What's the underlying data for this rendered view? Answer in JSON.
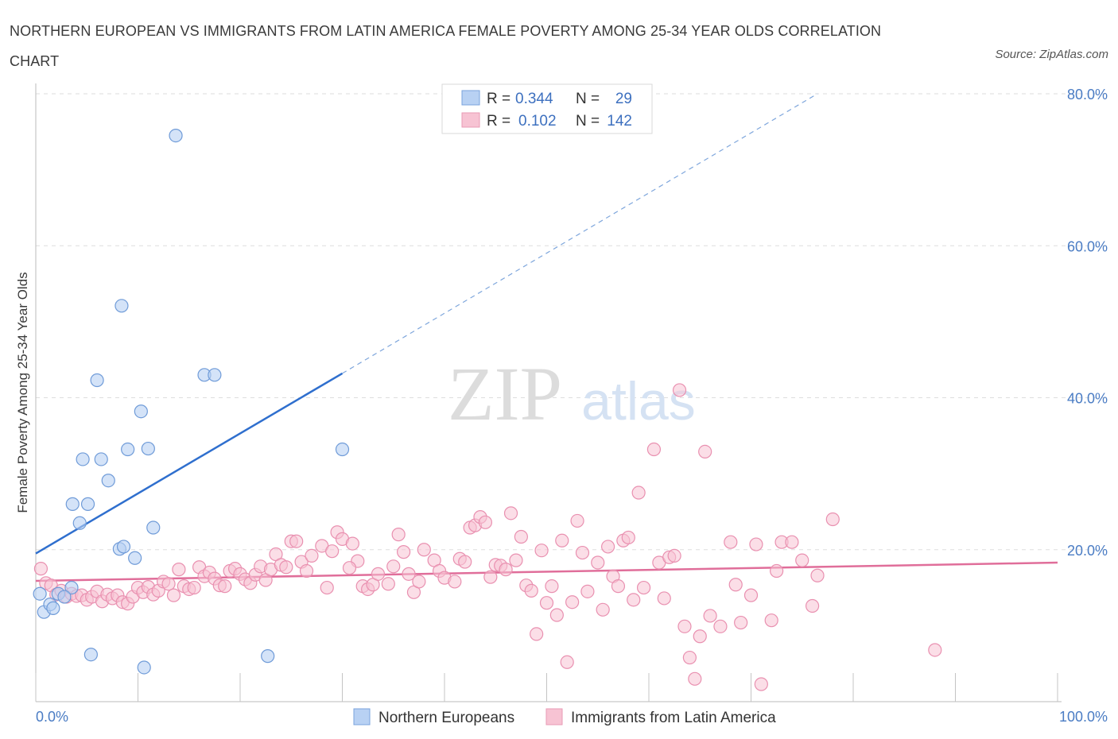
{
  "title": "NORTHERN EUROPEAN VS IMMIGRANTS FROM LATIN AMERICA FEMALE POVERTY AMONG 25-34 YEAR OLDS CORRELATION CHART",
  "source": "Source: ZipAtlas.com",
  "watermark": {
    "zip": "ZIP",
    "atlas": "atlas"
  },
  "colors": {
    "blue": "#4a7cc4",
    "blue_fill": "#b8d1f3",
    "blue_line": "#2f6fce",
    "pink": "#e56a97",
    "pink_fill": "#f7c3d3",
    "pink_line": "#e06e9a"
  },
  "legend": {
    "r_label": "R =",
    "n_label": "N =",
    "items": [
      {
        "r": "0.344",
        "n": "29"
      },
      {
        "r": "0.102",
        "n": "142"
      }
    ]
  },
  "chart_data": {
    "type": "scatter",
    "ylabel": "Female Poverty Among 25-34 Year Olds",
    "xlim": [
      0,
      100
    ],
    "ylim": [
      0,
      80
    ],
    "x_tick_labels": [
      "0.0%",
      "100.0%"
    ],
    "y_ticks": [
      20,
      40,
      60,
      80
    ],
    "y_tick_labels": [
      "20.0%",
      "40.0%",
      "60.0%",
      "80.0%"
    ],
    "grid": true,
    "series": [
      {
        "name": "Northern Europeans",
        "color": "#4a7cc4",
        "trend": {
          "x0": 0,
          "y0": 19.5,
          "x1": 30,
          "y1": 43.2,
          "dashed_to_x": 76.5,
          "dashed_to_y": 80
        },
        "points": [
          [
            0.4,
            14.2
          ],
          [
            0.8,
            11.8
          ],
          [
            1.4,
            12.8
          ],
          [
            1.7,
            12.3
          ],
          [
            3.5,
            15.0
          ],
          [
            2.2,
            14.2
          ],
          [
            13.7,
            74.5
          ],
          [
            8.4,
            52.1
          ],
          [
            6.0,
            42.3
          ],
          [
            16.5,
            43.0
          ],
          [
            17.5,
            43.0
          ],
          [
            10.3,
            38.2
          ],
          [
            9.0,
            33.2
          ],
          [
            11.0,
            33.3
          ],
          [
            4.6,
            31.9
          ],
          [
            6.4,
            31.9
          ],
          [
            7.1,
            29.1
          ],
          [
            3.6,
            26.0
          ],
          [
            5.1,
            26.0
          ],
          [
            4.3,
            23.5
          ],
          [
            11.5,
            22.9
          ],
          [
            8.2,
            20.1
          ],
          [
            8.6,
            20.4
          ],
          [
            9.7,
            18.9
          ],
          [
            30.0,
            33.2
          ],
          [
            5.4,
            6.2
          ],
          [
            10.6,
            4.5
          ],
          [
            22.7,
            6.0
          ],
          [
            2.8,
            13.8
          ]
        ]
      },
      {
        "name": "Immigrants from Latin America",
        "color": "#e56a97",
        "trend": {
          "x0": 0,
          "y0": 15.9,
          "x1": 100,
          "y1": 18.3
        },
        "points": [
          [
            0.5,
            17.5
          ],
          [
            1.0,
            15.6
          ],
          [
            1.5,
            15.3
          ],
          [
            2.0,
            14.1
          ],
          [
            2.5,
            14.6
          ],
          [
            3.0,
            13.8
          ],
          [
            3.5,
            14.2
          ],
          [
            4.0,
            13.9
          ],
          [
            4.5,
            14.0
          ],
          [
            5.0,
            13.4
          ],
          [
            5.5,
            13.8
          ],
          [
            6.0,
            14.5
          ],
          [
            6.5,
            13.2
          ],
          [
            7.0,
            14.1
          ],
          [
            7.5,
            13.6
          ],
          [
            8.0,
            14.0
          ],
          [
            8.5,
            13.1
          ],
          [
            9.0,
            12.9
          ],
          [
            9.5,
            13.8
          ],
          [
            10.0,
            15.0
          ],
          [
            10.5,
            14.4
          ],
          [
            11.0,
            15.1
          ],
          [
            11.5,
            14.1
          ],
          [
            12.0,
            14.6
          ],
          [
            12.5,
            15.8
          ],
          [
            13.0,
            15.5
          ],
          [
            13.5,
            14.0
          ],
          [
            14.0,
            17.4
          ],
          [
            14.5,
            15.2
          ],
          [
            15.0,
            14.8
          ],
          [
            15.5,
            15.0
          ],
          [
            16.0,
            17.7
          ],
          [
            16.5,
            16.5
          ],
          [
            17.0,
            17.0
          ],
          [
            17.5,
            16.2
          ],
          [
            18.0,
            15.3
          ],
          [
            18.5,
            15.2
          ],
          [
            19.0,
            17.2
          ],
          [
            19.5,
            17.5
          ],
          [
            20.0,
            16.8
          ],
          [
            20.5,
            16.1
          ],
          [
            21.0,
            15.6
          ],
          [
            21.5,
            16.7
          ],
          [
            22.0,
            17.8
          ],
          [
            22.5,
            16.0
          ],
          [
            23.0,
            17.4
          ],
          [
            23.5,
            19.4
          ],
          [
            24.0,
            18.0
          ],
          [
            24.5,
            17.7
          ],
          [
            25.0,
            21.1
          ],
          [
            25.5,
            21.1
          ],
          [
            26.0,
            18.4
          ],
          [
            26.5,
            17.2
          ],
          [
            27.0,
            19.2
          ],
          [
            28.0,
            20.5
          ],
          [
            28.5,
            15.0
          ],
          [
            29.0,
            19.8
          ],
          [
            29.5,
            22.3
          ],
          [
            30.0,
            21.4
          ],
          [
            31.0,
            20.8
          ],
          [
            31.5,
            18.5
          ],
          [
            32.0,
            15.2
          ],
          [
            32.5,
            14.8
          ],
          [
            33.0,
            15.4
          ],
          [
            33.5,
            16.8
          ],
          [
            34.5,
            15.5
          ],
          [
            35.0,
            17.8
          ],
          [
            35.5,
            22.0
          ],
          [
            36.0,
            19.7
          ],
          [
            36.5,
            16.8
          ],
          [
            37.0,
            14.4
          ],
          [
            37.5,
            15.8
          ],
          [
            38.0,
            20.0
          ],
          [
            39.0,
            18.6
          ],
          [
            39.5,
            17.2
          ],
          [
            40.0,
            16.3
          ],
          [
            41.0,
            15.8
          ],
          [
            41.5,
            18.8
          ],
          [
            42.0,
            18.4
          ],
          [
            42.5,
            22.9
          ],
          [
            43.0,
            23.2
          ],
          [
            43.5,
            24.3
          ],
          [
            44.0,
            23.6
          ],
          [
            44.5,
            16.4
          ],
          [
            45.0,
            18.0
          ],
          [
            45.5,
            17.9
          ],
          [
            46.0,
            17.4
          ],
          [
            46.5,
            24.8
          ],
          [
            47.0,
            18.6
          ],
          [
            47.5,
            21.7
          ],
          [
            48.0,
            15.3
          ],
          [
            48.5,
            14.6
          ],
          [
            49.0,
            8.9
          ],
          [
            49.5,
            19.9
          ],
          [
            50.0,
            13.0
          ],
          [
            50.5,
            15.2
          ],
          [
            51.0,
            11.4
          ],
          [
            51.5,
            21.2
          ],
          [
            52.5,
            13.1
          ],
          [
            53.0,
            23.8
          ],
          [
            53.5,
            19.6
          ],
          [
            54.0,
            14.5
          ],
          [
            55.0,
            18.3
          ],
          [
            55.5,
            12.1
          ],
          [
            56.0,
            20.4
          ],
          [
            56.5,
            16.5
          ],
          [
            57.0,
            15.2
          ],
          [
            57.5,
            21.2
          ],
          [
            58.0,
            21.6
          ],
          [
            58.5,
            13.4
          ],
          [
            59.0,
            27.5
          ],
          [
            59.5,
            15.0
          ],
          [
            60.5,
            33.2
          ],
          [
            61.0,
            18.3
          ],
          [
            61.5,
            13.6
          ],
          [
            62.0,
            19.0
          ],
          [
            62.5,
            19.2
          ],
          [
            63.0,
            41.0
          ],
          [
            63.5,
            9.9
          ],
          [
            64.0,
            5.8
          ],
          [
            64.5,
            3.0
          ],
          [
            65.0,
            8.6
          ],
          [
            65.5,
            32.9
          ],
          [
            66.0,
            11.3
          ],
          [
            67.0,
            9.9
          ],
          [
            68.0,
            21.0
          ],
          [
            68.5,
            15.4
          ],
          [
            69.0,
            10.4
          ],
          [
            70.0,
            14.0
          ],
          [
            70.5,
            20.7
          ],
          [
            71.0,
            2.3
          ],
          [
            72.0,
            10.7
          ],
          [
            72.5,
            17.2
          ],
          [
            73.0,
            21.0
          ],
          [
            74.0,
            21.0
          ],
          [
            75.0,
            18.6
          ],
          [
            76.0,
            12.6
          ],
          [
            76.5,
            16.6
          ],
          [
            78.0,
            24.0
          ],
          [
            88.0,
            6.8
          ],
          [
            52.0,
            5.2
          ],
          [
            30.7,
            17.6
          ]
        ]
      }
    ]
  },
  "bottom_legend": [
    "Northern Europeans",
    "Immigrants from Latin America"
  ]
}
